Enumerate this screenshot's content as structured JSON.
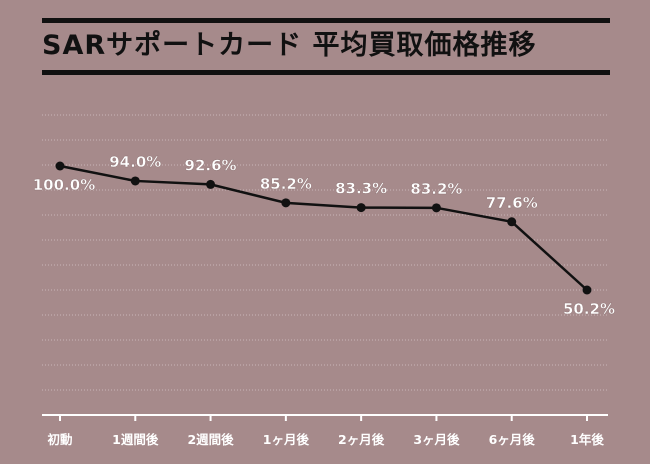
{
  "title": "SARサポートカード 平均買取価格推移",
  "chart_data": {
    "type": "line",
    "title": "SARサポートカード 平均買取価格推移",
    "categories": [
      "初動",
      "1週間後",
      "2週間後",
      "1ヶ月後",
      "2ヶ月後",
      "3ヶ月後",
      "6ヶ月後",
      "1年後"
    ],
    "values": [
      100.0,
      94.0,
      92.6,
      85.2,
      83.3,
      83.2,
      77.6,
      50.2
    ],
    "value_labels": [
      "100.0%",
      "94.0%",
      "92.6%",
      "85.2%",
      "83.3%",
      "83.2%",
      "77.6%",
      "50.2%"
    ],
    "ylim": [
      0,
      110
    ],
    "grid": true,
    "legend": "none",
    "colors": {
      "line": "#111111",
      "grid": "#c9b7b8",
      "axis": "#ffffff",
      "label": "#ffffff",
      "background": "#a68a8b"
    }
  }
}
